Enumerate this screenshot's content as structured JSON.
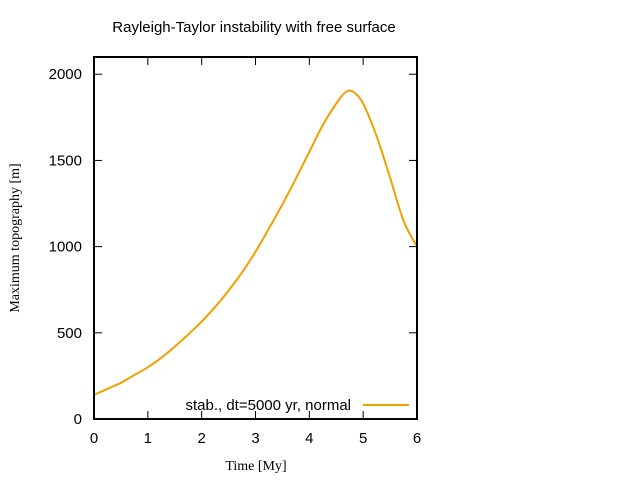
{
  "chart_data": {
    "type": "line",
    "title": "Rayleigh-Taylor instability with free surface",
    "xlabel": "Time [My]",
    "ylabel": "Maximum topography [m]",
    "xlim": [
      0,
      6
    ],
    "ylim": [
      0,
      2100
    ],
    "xticks": [
      "0",
      "1",
      "2",
      "3",
      "4",
      "5",
      "6"
    ],
    "yticks": [
      "0",
      "500",
      "1000",
      "1500",
      "2000"
    ],
    "grid": false,
    "legend_position": "bottom-right",
    "series": [
      {
        "name": "stab., dt=5000 yr, normal",
        "color": "#f0a000",
        "x": [
          0,
          0.25,
          0.5,
          0.75,
          1.0,
          1.25,
          1.5,
          1.75,
          2.0,
          2.25,
          2.5,
          2.75,
          3.0,
          3.25,
          3.5,
          3.75,
          4.0,
          4.25,
          4.5,
          4.65,
          4.75,
          4.85,
          5.0,
          5.25,
          5.5,
          5.75,
          6.0
        ],
        "values": [
          140,
          175,
          210,
          255,
          300,
          355,
          420,
          490,
          565,
          650,
          745,
          850,
          970,
          1105,
          1245,
          1395,
          1550,
          1705,
          1830,
          1890,
          1905,
          1890,
          1830,
          1640,
          1400,
          1150,
          1000
        ]
      }
    ]
  }
}
